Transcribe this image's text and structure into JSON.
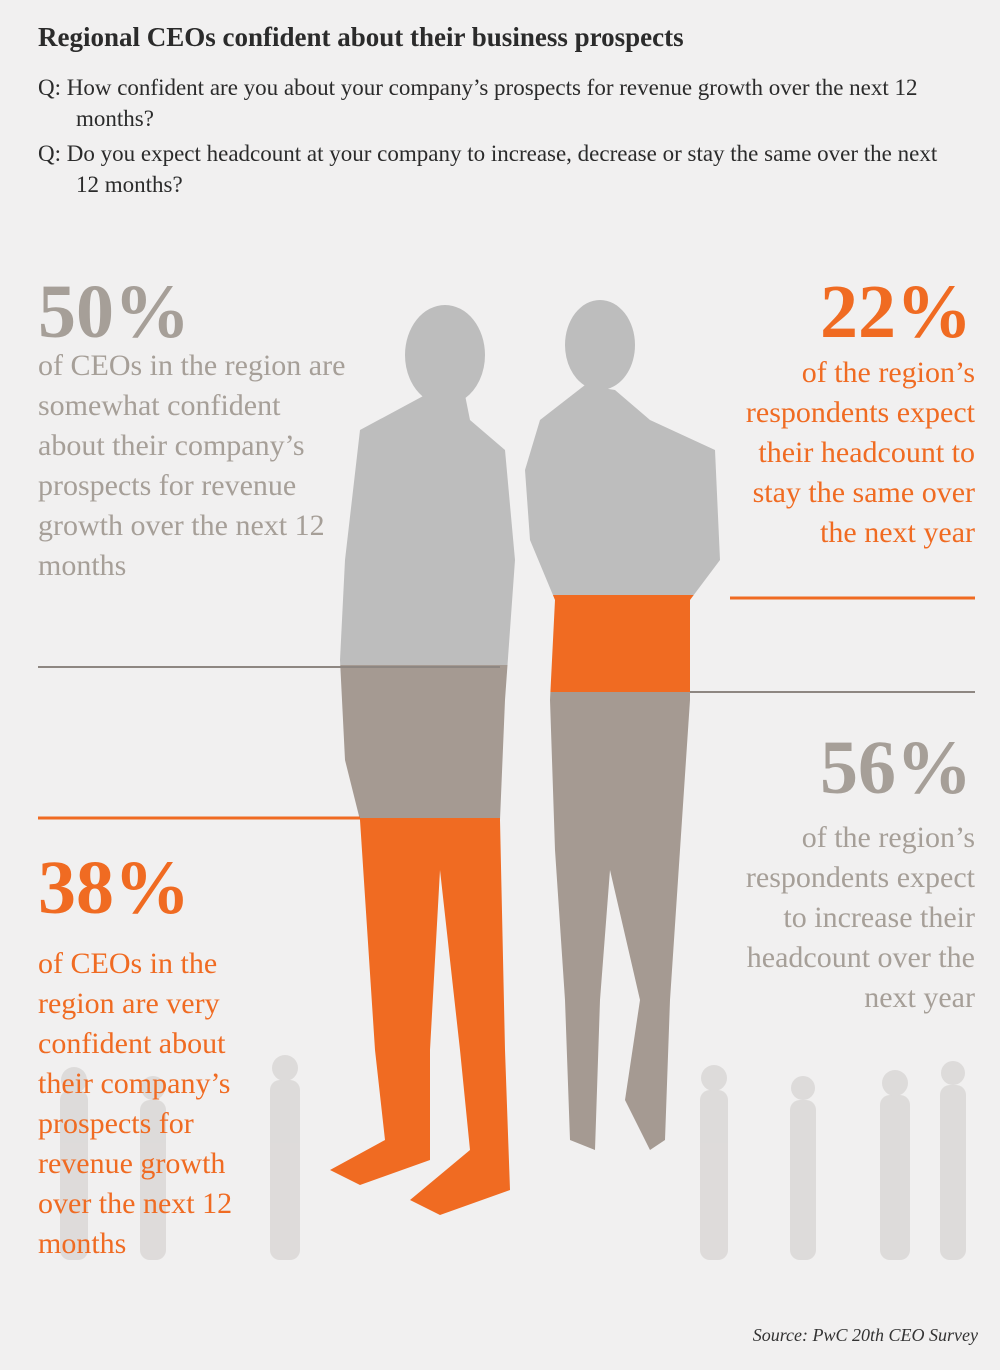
{
  "header": {
    "title": "Regional CEOs confident about their business prospects",
    "questions": [
      "Q: How confident are you about your company’s prospects for revenue growth over the next 12 months?",
      "Q: Do you expect headcount at your company to increase, decrease or stay the same over the next 12 months?"
    ]
  },
  "stats": [
    {
      "figure": "50%",
      "text": "of CEOs in the region are somewhat confident about their company’s prospects for revenue growth over the next 12 months"
    },
    {
      "figure": "22%",
      "text": "of the region’s respondents expect their headcount to stay the same over the next year"
    },
    {
      "figure": "56%",
      "text": "of the region’s respondents expect to increase their headcount over the next year"
    },
    {
      "figure": "38%",
      "text": "of CEOs in the region are very confident about their company’s prospects for revenue growth over the next 12 months"
    }
  ],
  "source": "Source: PwC 20th CEO Survey"
}
